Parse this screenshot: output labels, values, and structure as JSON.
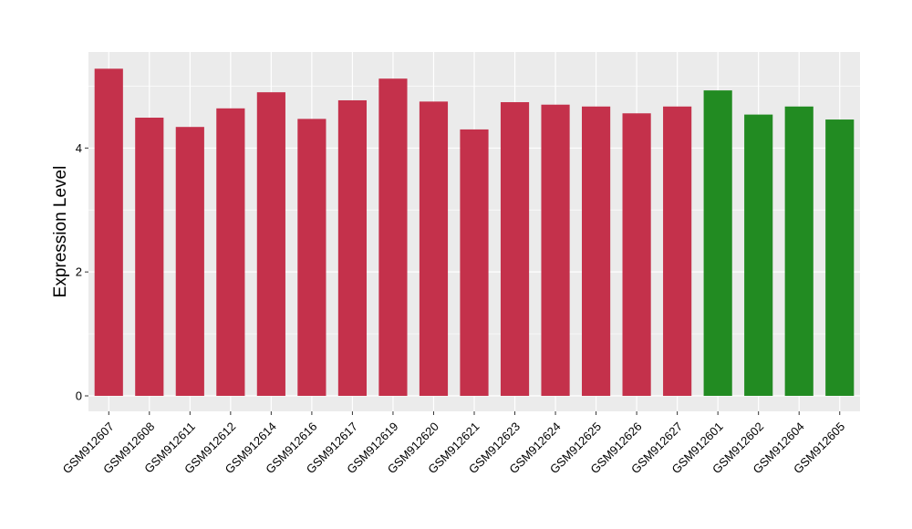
{
  "chart_data": {
    "type": "bar",
    "title": "",
    "xlabel": "",
    "ylabel": "Expression Level",
    "ylim": [
      -0.25,
      5.55
    ],
    "yticks": [
      0,
      2,
      4
    ],
    "grid": true,
    "legend": "none",
    "colors": {
      "group_a": "#c4314b",
      "group_b": "#228b22",
      "panel": "#ebebeb",
      "grid": "#ffffff"
    },
    "categories": [
      "GSM912607",
      "GSM912608",
      "GSM912611",
      "GSM912612",
      "GSM912614",
      "GSM912616",
      "GSM912617",
      "GSM912619",
      "GSM912620",
      "GSM912621",
      "GSM912623",
      "GSM912624",
      "GSM912625",
      "GSM912626",
      "GSM912627",
      "GSM912601",
      "GSM912602",
      "GSM912604",
      "GSM912605"
    ],
    "values": [
      5.28,
      4.49,
      4.34,
      4.64,
      4.9,
      4.47,
      4.77,
      5.12,
      4.75,
      4.3,
      4.74,
      4.7,
      4.67,
      4.56,
      4.67,
      4.93,
      4.54,
      4.67,
      4.46
    ],
    "groups": [
      "a",
      "a",
      "a",
      "a",
      "a",
      "a",
      "a",
      "a",
      "a",
      "a",
      "a",
      "a",
      "a",
      "a",
      "a",
      "b",
      "b",
      "b",
      "b"
    ]
  }
}
